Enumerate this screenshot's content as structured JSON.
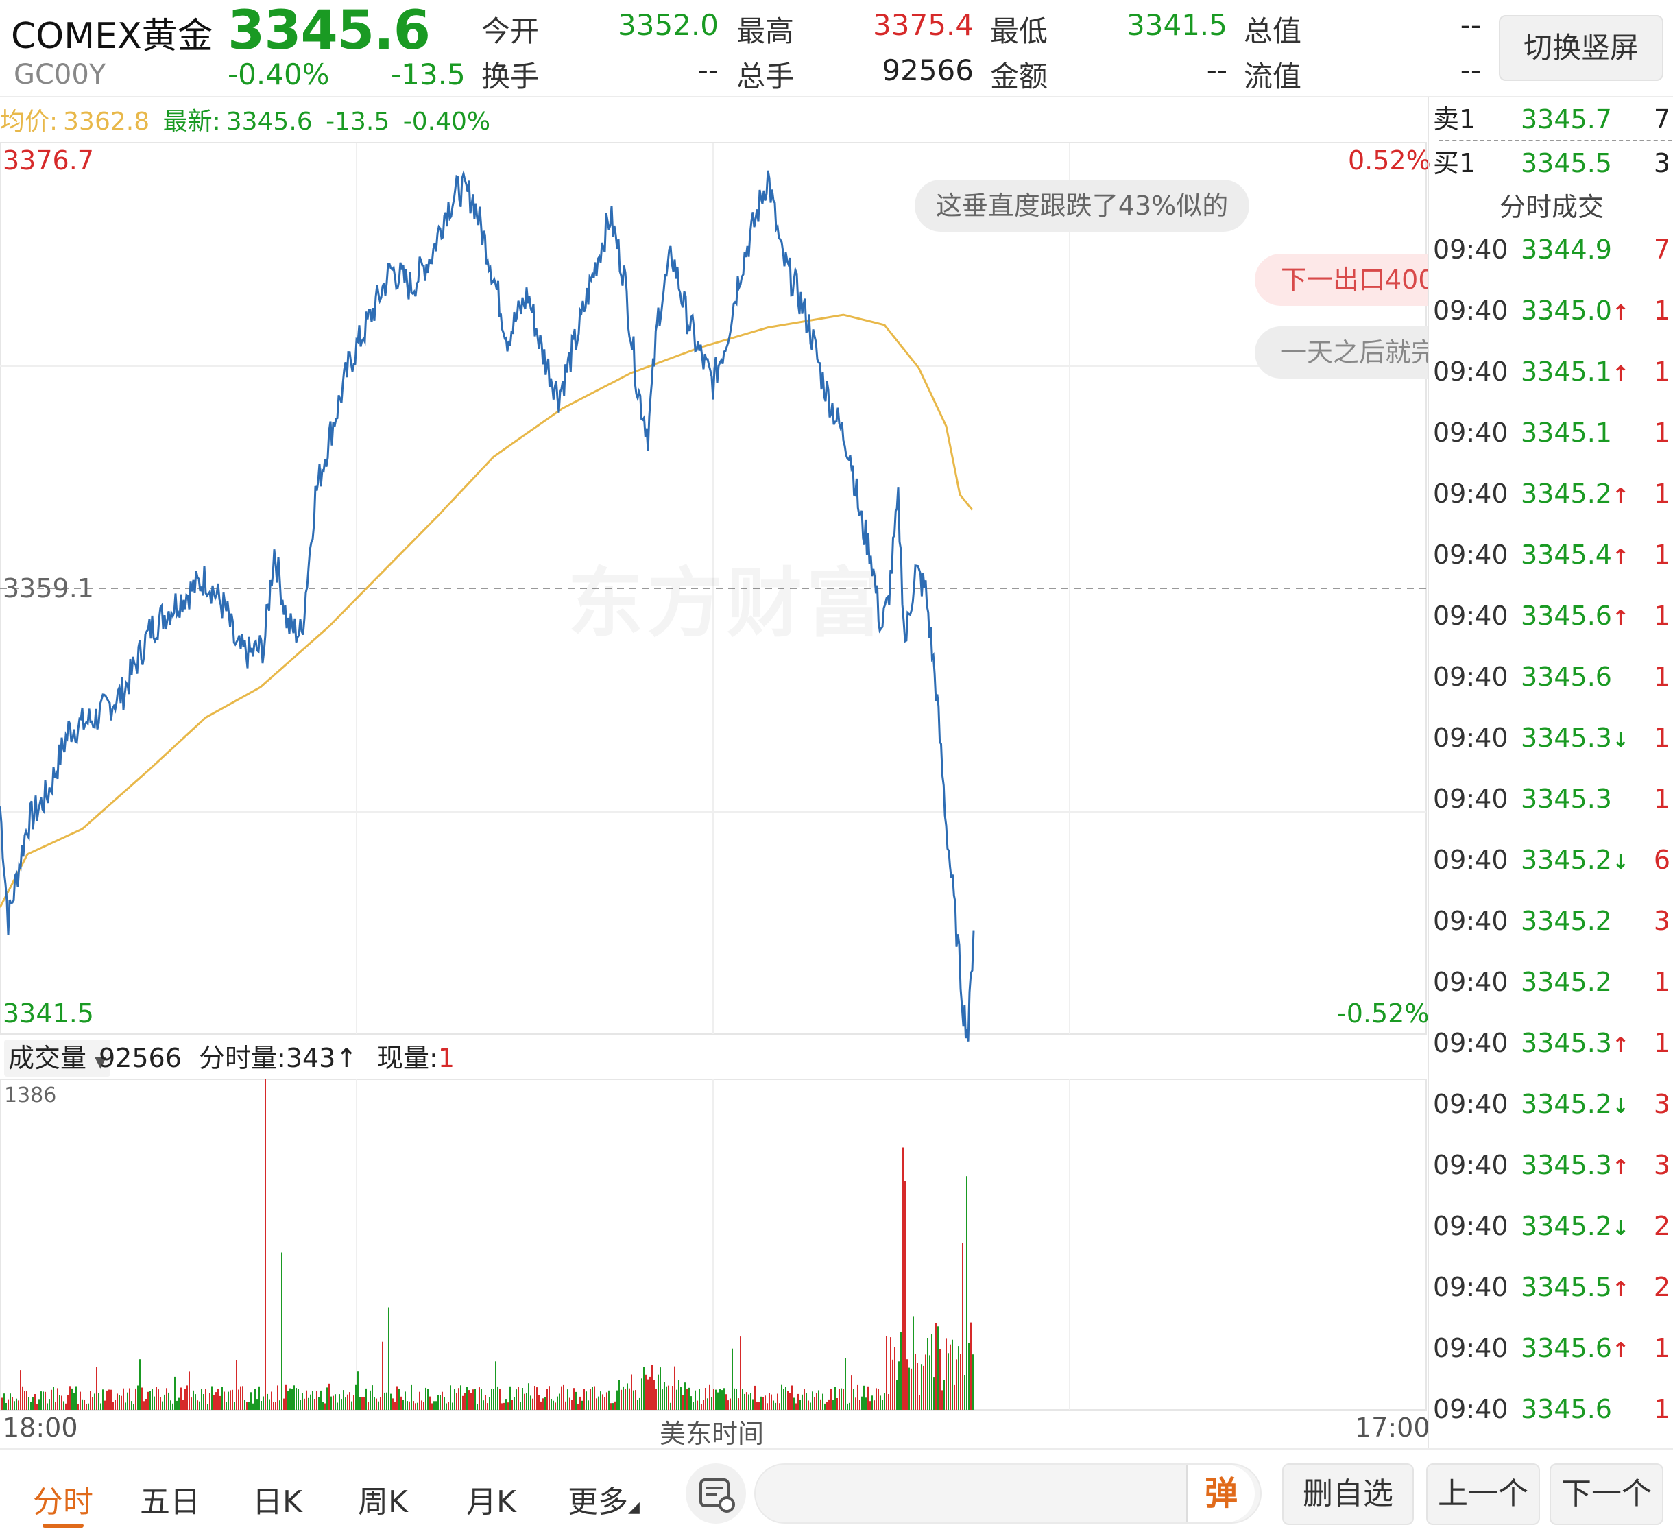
{
  "header": {
    "name": "COMEX黄金",
    "code": "GC00Y",
    "price": "3345.6",
    "change_pct": "-0.40%",
    "change": "-13.5",
    "stats": [
      {
        "label": "今开",
        "value": "3352.0",
        "color": "green"
      },
      {
        "label": "最高",
        "value": "3375.4",
        "color": "red"
      },
      {
        "label": "最低",
        "value": "3341.5",
        "color": "green"
      },
      {
        "label": "总值",
        "value": "--",
        "color": "dark"
      },
      {
        "label": "换手",
        "value": "--",
        "color": "dark"
      },
      {
        "label": "总手",
        "value": "92566",
        "color": "dark"
      },
      {
        "label": "金额",
        "value": "--",
        "color": "dark"
      },
      {
        "label": "流值",
        "value": "--",
        "color": "dark"
      }
    ],
    "switch_label": "切换竖屏"
  },
  "chart": {
    "avg_label": "均价:",
    "avg_value": "3362.8",
    "latest_label": "最新:",
    "latest_value": "3345.6",
    "latest_change": "-13.5",
    "latest_pct": "-0.40%",
    "y_max": "3376.7",
    "y_mid": "3359.1",
    "y_min": "3341.5",
    "pct_max": "0.52%",
    "pct_min": "-0.52%",
    "watermark": "东方财富",
    "annotations": [
      "这垂直度跟跌了43%似的",
      "下一出口400",
      "一天之后就完"
    ]
  },
  "volume": {
    "selector": "成交量",
    "total": "92566",
    "minute_label": "分时量:",
    "minute_value": "343↑",
    "current_label": "现量:",
    "current_value": "1",
    "max_label": "1386"
  },
  "time_axis": {
    "start": "18:00",
    "center": "美东时间",
    "end": "17:00"
  },
  "order_book": [
    {
      "label": "卖1",
      "price": "3345.7",
      "volume": "7"
    },
    {
      "label": "买1",
      "price": "3345.5",
      "volume": "3"
    }
  ],
  "trades_title": "分时成交",
  "trades": [
    {
      "time": "09:40",
      "price": "3344.9",
      "arrow": "",
      "vol": "7"
    },
    {
      "time": "09:40",
      "price": "3345.0",
      "arrow": "↑",
      "vol": "1"
    },
    {
      "time": "09:40",
      "price": "3345.1",
      "arrow": "↑",
      "vol": "1"
    },
    {
      "time": "09:40",
      "price": "3345.1",
      "arrow": "",
      "vol": "1"
    },
    {
      "time": "09:40",
      "price": "3345.2",
      "arrow": "↑",
      "vol": "1"
    },
    {
      "time": "09:40",
      "price": "3345.4",
      "arrow": "↑",
      "vol": "1"
    },
    {
      "time": "09:40",
      "price": "3345.6",
      "arrow": "↑",
      "vol": "1"
    },
    {
      "time": "09:40",
      "price": "3345.6",
      "arrow": "",
      "vol": "1"
    },
    {
      "time": "09:40",
      "price": "3345.3",
      "arrow": "↓",
      "vol": "1"
    },
    {
      "time": "09:40",
      "price": "3345.3",
      "arrow": "",
      "vol": "1"
    },
    {
      "time": "09:40",
      "price": "3345.2",
      "arrow": "↓",
      "vol": "6"
    },
    {
      "time": "09:40",
      "price": "3345.2",
      "arrow": "",
      "vol": "3"
    },
    {
      "time": "09:40",
      "price": "3345.2",
      "arrow": "",
      "vol": "1"
    },
    {
      "time": "09:40",
      "price": "3345.3",
      "arrow": "↑",
      "vol": "1"
    },
    {
      "time": "09:40",
      "price": "3345.2",
      "arrow": "↓",
      "vol": "3"
    },
    {
      "time": "09:40",
      "price": "3345.3",
      "arrow": "↑",
      "vol": "3"
    },
    {
      "time": "09:40",
      "price": "3345.2",
      "arrow": "↓",
      "vol": "2"
    },
    {
      "time": "09:40",
      "price": "3345.5",
      "arrow": "↑",
      "vol": "2"
    },
    {
      "time": "09:40",
      "price": "3345.6",
      "arrow": "↑",
      "vol": "1"
    },
    {
      "time": "09:40",
      "price": "3345.6",
      "arrow": "",
      "vol": "1"
    }
  ],
  "bottom": {
    "tabs": [
      "分时",
      "五日",
      "日K",
      "周K",
      "月K",
      "更多"
    ],
    "danmu": "弹",
    "delete_fav": "删自选",
    "prev": "上一个",
    "next": "下一个"
  },
  "colors": {
    "price_line": "#2e6db4",
    "avg_line": "#e8b84a",
    "up": "#d62a2a",
    "down": "#1a9a23",
    "accent": "#e06a1a"
  },
  "icons": [
    "dropdown-triangle-icon",
    "news-icon",
    "arrow-up-icon",
    "arrow-down-icon"
  ]
}
